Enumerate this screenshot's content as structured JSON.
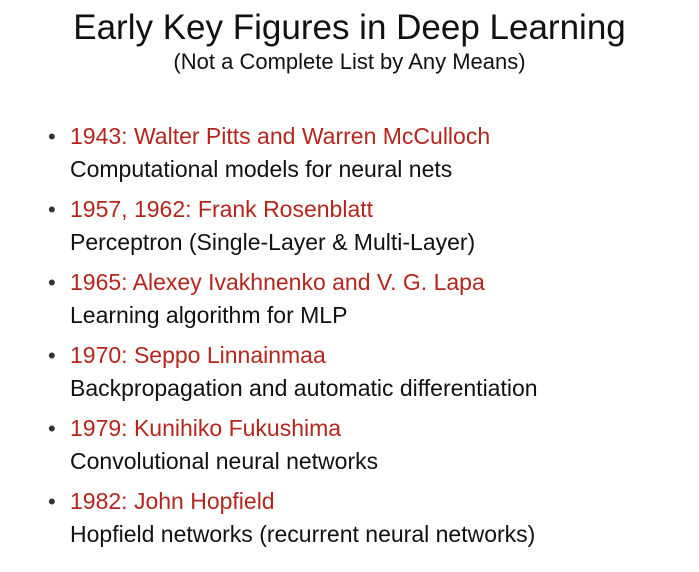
{
  "slide": {
    "title": "Early Key Figures in Deep Learning",
    "subtitle": "(Not a Complete List by Any Means)",
    "items": [
      {
        "title": "1943: Walter Pitts and Warren McCulloch",
        "description": "Computational models for neural nets"
      },
      {
        "title": "1957, 1962: Frank Rosenblatt",
        "description": "Perceptron (Single-Layer & Multi-Layer)"
      },
      {
        "title": "1965: Alexey Ivakhnenko and V. G. Lapa",
        "description": "Learning algorithm for MLP"
      },
      {
        "title": "1970: Seppo Linnainmaa",
        "description": "Backpropagation and automatic differentiation"
      },
      {
        "title": "1979: Kunihiko Fukushima",
        "description": "Convolutional neural networks"
      },
      {
        "title": "1982: John Hopfield",
        "description": "Hopfield networks (recurrent neural networks)"
      }
    ]
  },
  "colors": {
    "item_title": "#b3261e",
    "text": "#111111",
    "background": "#ffffff"
  }
}
